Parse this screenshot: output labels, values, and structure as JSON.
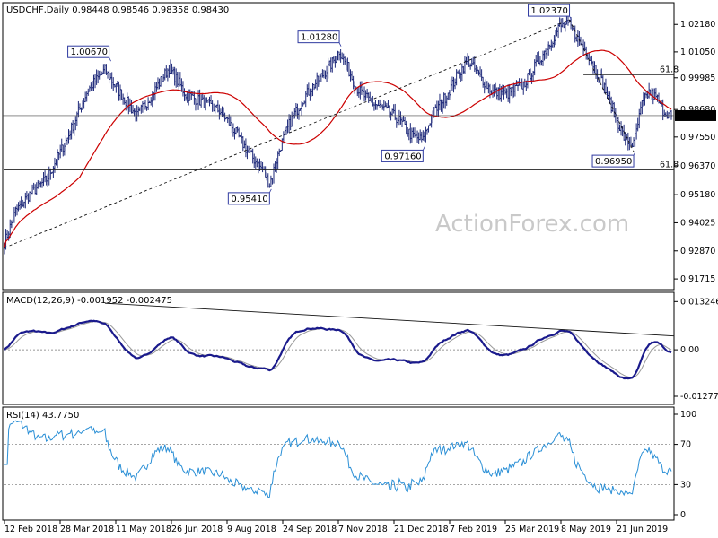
{
  "chart_data": {
    "type": "ohlc",
    "symbol_line": "USDCHF,Daily  0.98448 0.98546 0.98358 0.98430",
    "watermark": "ActionForex.com",
    "current_price_label": "0.98430",
    "colors": {
      "bars": "#1f2a7a",
      "ma": "#cc0000",
      "macd": "#1a1a8c",
      "signal": "#9a9a9a",
      "rsi": "#2a8fd6",
      "box": "#2f3aa0"
    },
    "price_axis": {
      "ylim": [
        0.9135,
        1.03
      ],
      "ticks": [
        "1.02180",
        "1.01050",
        "0.99985",
        "0.98680",
        "0.97550",
        "0.96370",
        "0.95180",
        "0.94025",
        "0.92870",
        "0.91715"
      ]
    },
    "x_ticks": [
      "12 Feb 2018",
      "28 Mar 2018",
      "11 May 2018",
      "26 Jun 2018",
      "9 Aug 2018",
      "24 Sep 2018",
      "7 Nov 2018",
      "21 Dec 2018",
      "7 Feb 2019",
      "25 Mar 2019",
      "8 May 2019",
      "21 Jun 2019"
    ],
    "anchors": [
      [
        0,
        0.932
      ],
      [
        8,
        0.945
      ],
      [
        18,
        0.952
      ],
      [
        30,
        0.958
      ],
      [
        45,
        0.975
      ],
      [
        60,
        0.995
      ],
      [
        72,
        1.003
      ],
      [
        80,
        0.996
      ],
      [
        95,
        0.984
      ],
      [
        108,
        0.995
      ],
      [
        118,
        1.004
      ],
      [
        130,
        0.993
      ],
      [
        145,
        0.989
      ],
      [
        155,
        0.986
      ],
      [
        165,
        0.978
      ],
      [
        175,
        0.969
      ],
      [
        185,
        0.962
      ],
      [
        190,
        0.956
      ],
      [
        198,
        0.972
      ],
      [
        205,
        0.982
      ],
      [
        215,
        0.992
      ],
      [
        225,
        0.999
      ],
      [
        235,
        1.006
      ],
      [
        240,
        1.011
      ],
      [
        246,
        1.004
      ],
      [
        252,
        0.996
      ],
      [
        262,
        0.99
      ],
      [
        272,
        0.987
      ],
      [
        282,
        0.983
      ],
      [
        292,
        0.976
      ],
      [
        300,
        0.974
      ],
      [
        306,
        0.984
      ],
      [
        316,
        0.992
      ],
      [
        326,
        1.002
      ],
      [
        332,
        1.007
      ],
      [
        340,
        1.001
      ],
      [
        350,
        0.994
      ],
      [
        360,
        0.993
      ],
      [
        372,
        0.997
      ],
      [
        382,
        1.006
      ],
      [
        392,
        1.015
      ],
      [
        398,
        1.021
      ],
      [
        405,
        1.0215
      ],
      [
        412,
        1.015
      ],
      [
        420,
        1.008
      ],
      [
        430,
        0.996
      ],
      [
        438,
        0.984
      ],
      [
        445,
        0.974
      ],
      [
        451,
        0.9725
      ],
      [
        457,
        0.989
      ],
      [
        462,
        0.994
      ],
      [
        468,
        0.991
      ],
      [
        472,
        0.9865
      ],
      [
        478,
        0.9843
      ]
    ],
    "indicators": {
      "ma_label": "",
      "macd": {
        "label": "MACD(12,26,9) -0.001952 -0.002475",
        "ylim": [
          -0.0145,
          0.0148
        ],
        "ticks": [
          "0.013246",
          "0.00",
          "-0.012779"
        ]
      },
      "rsi": {
        "label": "RSI(14) 43.7750",
        "ylim": [
          0,
          100
        ],
        "ticks": [
          "100",
          "70",
          "30",
          "0"
        ]
      }
    },
    "annotations": {
      "boxes": [
        {
          "text": "1.00670",
          "bar": 75,
          "price": 1.0067,
          "side": "above"
        },
        {
          "text": "0.95410",
          "bar": 190,
          "price": 0.9541,
          "side": "below"
        },
        {
          "text": "1.01280",
          "bar": 240,
          "price": 1.0128,
          "side": "above"
        },
        {
          "text": "0.97160",
          "bar": 300,
          "price": 0.9716,
          "side": "below"
        },
        {
          "text": "1.02370",
          "bar": 405,
          "price": 1.0237,
          "side": "above"
        },
        {
          "text": "0.96950",
          "bar": 451,
          "price": 0.9695,
          "side": "below"
        }
      ],
      "fib_levels": [
        {
          "text": "61.8",
          "price": 0.962,
          "from_bar": 0
        },
        {
          "text": "61.8",
          "price": 1.001,
          "from_bar": 415
        }
      ],
      "trendlines": [
        {
          "from": [
            0,
            0.93
          ],
          "to": [
            405,
            1.0237
          ],
          "dashed": true
        },
        {
          "from": [
            405,
            1.0237
          ],
          "to": [
            451,
            0.9695
          ],
          "dashed": true
        }
      ]
    }
  }
}
